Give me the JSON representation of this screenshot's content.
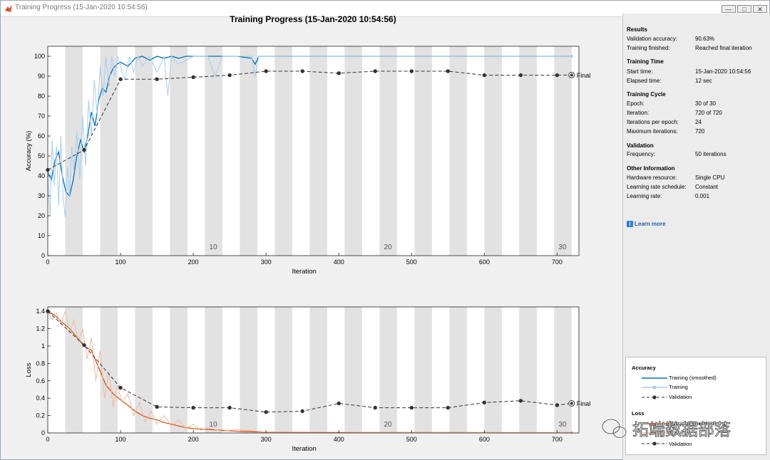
{
  "window": {
    "title": "Training Progress (15-Jan-2020 10:54:56)",
    "buttons": [
      "—",
      "□",
      "✕"
    ]
  },
  "figure": {
    "title": "Training Progress (15-Jan-2020 10:54:56)"
  },
  "results_panel": {
    "sections": [
      {
        "title": "Results",
        "rows": [
          {
            "label": "Validation accuracy:",
            "value": "90.63%"
          },
          {
            "label": "Training finished:",
            "value": "Reached final iteration"
          }
        ]
      },
      {
        "title": "Training Time",
        "rows": [
          {
            "label": "Start time:",
            "value": "15-Jan-2020 10:54:56"
          },
          {
            "label": "Elapsed time:",
            "value": "12 sec"
          }
        ]
      },
      {
        "title": "Training Cycle",
        "rows": [
          {
            "label": "Epoch:",
            "value": "30 of 30"
          },
          {
            "label": "Iteration:",
            "value": "720 of 720"
          },
          {
            "label": "Iterations per epoch:",
            "value": "24"
          },
          {
            "label": "Maximum iterations:",
            "value": "720"
          }
        ]
      },
      {
        "title": "Validation",
        "rows": [
          {
            "label": "Frequency:",
            "value": "50 iterations"
          }
        ]
      },
      {
        "title": "Other Information",
        "rows": [
          {
            "label": "Hardware resource:",
            "value": "Single CPU"
          },
          {
            "label": "Learning rate schedule:",
            "value": "Constant"
          },
          {
            "label": "Learning rate:",
            "value": "0.001"
          }
        ]
      }
    ],
    "learn_more": "Learn more"
  },
  "legend": {
    "accuracy_title": "Accuracy",
    "loss_title": "Loss",
    "accuracy_entries": [
      "Training (smoothed)",
      "Training",
      "Validation"
    ],
    "loss_entries": [
      "Training (smoothed)",
      "Training",
      "Validation"
    ]
  },
  "watermark": "拓端数据部落",
  "colors": {
    "acc_smoothed": "#0072bd",
    "acc_raw": "#a7cdee",
    "loss_smoothed": "#d95319",
    "loss_raw": "#f3b79a",
    "validation": "#333333",
    "epoch_shade": "#e2e2e2"
  },
  "chart_data": [
    {
      "type": "line",
      "title": "",
      "xlabel": "Iteration",
      "ylabel": "Accuracy (%)",
      "xlim": [
        0,
        730
      ],
      "ylim": [
        0,
        105
      ],
      "xticks": [
        0,
        100,
        200,
        300,
        400,
        500,
        600,
        700
      ],
      "yticks": [
        0,
        10,
        20,
        30,
        40,
        50,
        60,
        70,
        80,
        90,
        100
      ],
      "epoch_labels": [
        {
          "label": "10",
          "x": 222
        },
        {
          "label": "20",
          "x": 462
        },
        {
          "label": "30",
          "x": 702
        }
      ],
      "final_label": "Final",
      "iterations_per_epoch": 24,
      "epochs": 30,
      "series": [
        {
          "name": "Training (smoothed)",
          "x": [
            0,
            5,
            10,
            15,
            20,
            25,
            30,
            35,
            40,
            45,
            50,
            55,
            60,
            65,
            70,
            75,
            80,
            85,
            90,
            95,
            100,
            110,
            120,
            130,
            140,
            150,
            160,
            170,
            180,
            190,
            200,
            220,
            240,
            260,
            280,
            285,
            290,
            300,
            350,
            400,
            500,
            600,
            720
          ],
          "y": [
            42,
            38,
            48,
            52,
            40,
            32,
            30,
            38,
            50,
            58,
            52,
            60,
            72,
            65,
            78,
            84,
            82,
            90,
            94,
            96,
            97,
            95,
            99,
            100,
            98,
            100,
            99,
            100,
            99,
            100,
            100,
            100,
            100,
            100,
            99,
            96,
            100,
            100,
            100,
            100,
            100,
            100,
            100
          ]
        },
        {
          "name": "Training",
          "x": [
            0,
            3,
            6,
            9,
            12,
            15,
            18,
            21,
            24,
            27,
            30,
            33,
            36,
            40,
            44,
            48,
            52,
            56,
            60,
            64,
            68,
            72,
            76,
            80,
            84,
            88,
            92,
            96,
            100,
            106,
            112,
            118,
            124,
            130,
            140,
            150,
            160,
            165,
            170,
            180,
            200,
            220,
            230,
            240,
            260,
            280,
            285,
            290,
            300,
            400,
            500,
            600,
            720
          ],
          "y": [
            42,
            20,
            58,
            35,
            55,
            25,
            60,
            30,
            19,
            45,
            30,
            55,
            42,
            62,
            38,
            70,
            45,
            78,
            60,
            88,
            70,
            95,
            80,
            100,
            85,
            100,
            90,
            100,
            95,
            88,
            100,
            92,
            100,
            95,
            100,
            92,
            100,
            80,
            100,
            96,
            100,
            100,
            90,
            100,
            100,
            100,
            90,
            100,
            100,
            100,
            100,
            100,
            100
          ]
        },
        {
          "name": "Validation",
          "x": [
            0,
            50,
            100,
            150,
            200,
            250,
            300,
            350,
            400,
            450,
            500,
            550,
            600,
            650,
            700,
            720
          ],
          "y": [
            43,
            53,
            88.5,
            88.5,
            89.5,
            90.5,
            92.5,
            92.5,
            91.5,
            92.5,
            92.5,
            92.5,
            90.5,
            90.5,
            90.5,
            90.6
          ]
        }
      ]
    },
    {
      "type": "line",
      "title": "",
      "xlabel": "Iteration",
      "ylabel": "Loss",
      "xlim": [
        0,
        730
      ],
      "ylim": [
        0,
        1.45
      ],
      "xticks": [
        0,
        100,
        200,
        300,
        400,
        500,
        600,
        700
      ],
      "yticks": [
        0,
        0.2,
        0.4,
        0.6,
        0.8,
        1,
        1.2,
        1.4
      ],
      "epoch_labels": [
        {
          "label": "10",
          "x": 222
        },
        {
          "label": "20",
          "x": 462
        },
        {
          "label": "30",
          "x": 702
        }
      ],
      "final_label": "Final",
      "series": [
        {
          "name": "Training (smoothed)",
          "x": [
            0,
            10,
            20,
            30,
            40,
            50,
            60,
            70,
            80,
            90,
            100,
            110,
            120,
            130,
            140,
            150,
            160,
            170,
            180,
            190,
            200,
            220,
            240,
            260,
            280,
            300,
            350,
            400,
            500,
            600,
            720
          ],
          "y": [
            1.4,
            1.35,
            1.27,
            1.2,
            1.1,
            1.0,
            0.95,
            0.75,
            0.55,
            0.45,
            0.38,
            0.32,
            0.25,
            0.2,
            0.17,
            0.15,
            0.12,
            0.1,
            0.08,
            0.06,
            0.05,
            0.04,
            0.03,
            0.02,
            0.015,
            0.01,
            0.008,
            0.006,
            0.005,
            0.004,
            0.004
          ]
        },
        {
          "name": "Training",
          "x": [
            0,
            6,
            12,
            18,
            24,
            30,
            36,
            42,
            48,
            54,
            60,
            66,
            72,
            78,
            84,
            90,
            96,
            102,
            110,
            118,
            126,
            134,
            142,
            150,
            160,
            170,
            180,
            190,
            200,
            210,
            220,
            240,
            260,
            300,
            400,
            500,
            600,
            720
          ],
          "y": [
            1.4,
            1.3,
            1.38,
            1.25,
            1.4,
            1.15,
            1.3,
            1.05,
            1.2,
            0.85,
            1.1,
            0.6,
            0.95,
            0.4,
            0.7,
            0.3,
            0.55,
            0.35,
            0.45,
            0.2,
            0.35,
            0.12,
            0.25,
            0.1,
            0.2,
            0.08,
            0.15,
            0.05,
            0.1,
            0.03,
            0.06,
            0.02,
            0.04,
            0.01,
            0.01,
            0.005,
            0.005,
            0.005
          ]
        },
        {
          "name": "Validation",
          "x": [
            0,
            50,
            100,
            150,
            200,
            250,
            300,
            350,
            400,
            450,
            500,
            550,
            600,
            650,
            700,
            720
          ],
          "y": [
            1.4,
            1.01,
            0.52,
            0.3,
            0.29,
            0.29,
            0.24,
            0.25,
            0.34,
            0.29,
            0.29,
            0.29,
            0.35,
            0.37,
            0.32,
            0.34
          ]
        }
      ]
    }
  ]
}
